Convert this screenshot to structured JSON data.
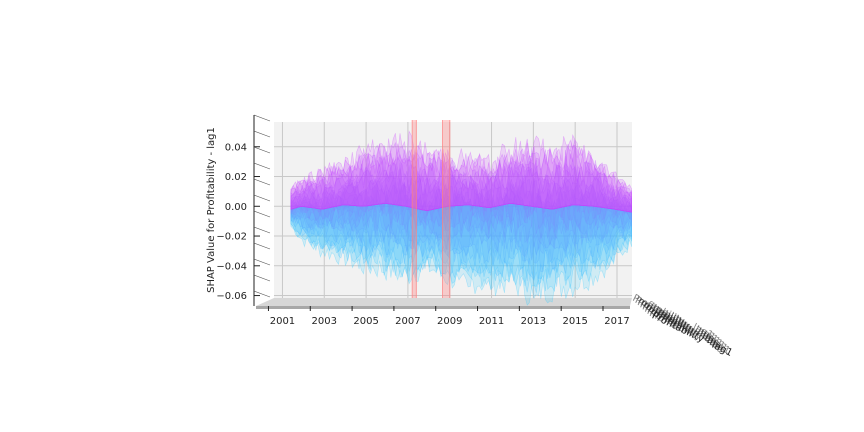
{
  "chart_data": {
    "type": "area",
    "view": "3d-surface-projection",
    "title": "",
    "xlabel": "",
    "ylabel": "SHAP Value for Profitability - lag1",
    "zlabel": "Profitability - lag1",
    "xticks": [
      "2001",
      "2003",
      "2005",
      "2007",
      "2009",
      "2011",
      "2013",
      "2015",
      "2017"
    ],
    "xlim": [
      2000.5,
      2018.1
    ],
    "yticks": [
      -0.06,
      -0.04,
      -0.02,
      0.0,
      0.02,
      0.04
    ],
    "ytick_labels": [
      "−0.06",
      "−0.04",
      "−0.02",
      "0.00",
      "0.02",
      "0.04"
    ],
    "ylim": [
      -0.065,
      0.06
    ],
    "grid": true,
    "colormap": [
      "#33ccff",
      "#cc44ff"
    ],
    "series_summary": [
      {
        "x": 2001.5,
        "y_low": -0.012,
        "y_mid": -0.002,
        "y_high": 0.012
      },
      {
        "x": 2002.0,
        "y_low": -0.022,
        "y_mid": 0.0,
        "y_high": 0.018
      },
      {
        "x": 2003.0,
        "y_low": -0.03,
        "y_mid": -0.002,
        "y_high": 0.022
      },
      {
        "x": 2004.0,
        "y_low": -0.034,
        "y_mid": 0.001,
        "y_high": 0.028
      },
      {
        "x": 2005.0,
        "y_low": -0.04,
        "y_mid": 0.0,
        "y_high": 0.036
      },
      {
        "x": 2006.0,
        "y_low": -0.042,
        "y_mid": 0.002,
        "y_high": 0.04
      },
      {
        "x": 2007.0,
        "y_low": -0.046,
        "y_mid": 0.0,
        "y_high": 0.042
      },
      {
        "x": 2008.0,
        "y_low": -0.04,
        "y_mid": -0.003,
        "y_high": 0.036
      },
      {
        "x": 2009.0,
        "y_low": -0.048,
        "y_mid": 0.0,
        "y_high": 0.032
      },
      {
        "x": 2010.0,
        "y_low": -0.05,
        "y_mid": 0.001,
        "y_high": 0.03
      },
      {
        "x": 2011.0,
        "y_low": -0.052,
        "y_mid": -0.001,
        "y_high": 0.028
      },
      {
        "x": 2012.0,
        "y_low": -0.05,
        "y_mid": 0.002,
        "y_high": 0.036
      },
      {
        "x": 2013.0,
        "y_low": -0.058,
        "y_mid": 0.0,
        "y_high": 0.04
      },
      {
        "x": 2014.0,
        "y_low": -0.055,
        "y_mid": -0.002,
        "y_high": 0.034
      },
      {
        "x": 2015.0,
        "y_low": -0.052,
        "y_mid": 0.001,
        "y_high": 0.04
      },
      {
        "x": 2016.0,
        "y_low": -0.046,
        "y_mid": 0.0,
        "y_high": 0.032
      },
      {
        "x": 2017.0,
        "y_low": -0.036,
        "y_mid": -0.002,
        "y_high": 0.02
      },
      {
        "x": 2017.8,
        "y_low": -0.024,
        "y_mid": -0.004,
        "y_high": 0.012
      }
    ],
    "highlight_periods": [
      {
        "x_start": 2007.3,
        "x_end": 2007.5
      },
      {
        "x_start": 2008.75,
        "x_end": 2009.1
      }
    ],
    "highlight_color": "#ff8080"
  }
}
